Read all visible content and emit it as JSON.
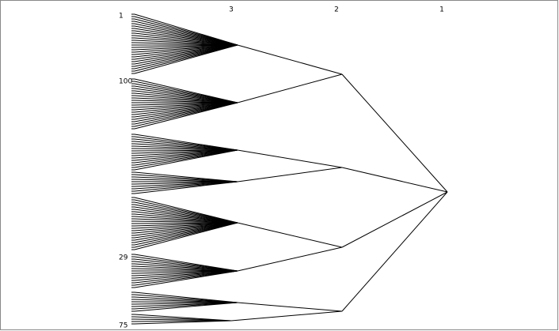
{
  "levels": [
    "3",
    "2",
    "1"
  ],
  "leaf_labels": [
    "1",
    "100",
    "29",
    "75"
  ]
}
